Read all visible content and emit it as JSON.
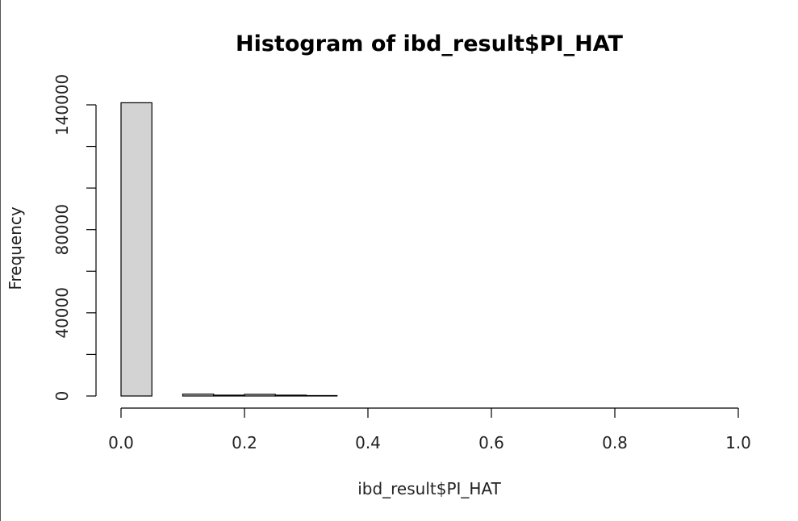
{
  "chart_data": {
    "type": "bar",
    "title": "Histogram of ibd_result$PI_HAT",
    "xlabel": "ibd_result$PI_HAT",
    "ylabel": "Frequency",
    "xlim": [
      0,
      1
    ],
    "ylim": [
      0,
      140000
    ],
    "xticks": [
      "0.0",
      "0.2",
      "0.4",
      "0.6",
      "0.8",
      "1.0"
    ],
    "yticks": [
      "0",
      "40000",
      "80000",
      "140000"
    ],
    "ytick_marks": [
      0,
      20000,
      40000,
      60000,
      80000,
      100000,
      120000,
      140000
    ],
    "bin_width": 0.05,
    "bins": [
      0.0,
      0.05,
      0.1,
      0.15,
      0.2,
      0.25,
      0.3,
      0.35,
      0.4,
      0.45,
      0.5,
      0.55,
      0.6,
      0.65,
      0.7,
      0.75,
      0.8,
      0.85,
      0.9,
      0.95
    ],
    "values": [
      141000,
      0,
      900,
      400,
      800,
      400,
      200,
      0,
      0,
      0,
      0,
      0,
      0,
      0,
      0,
      0,
      0,
      0,
      0,
      0
    ],
    "bar_color": "#d3d3d3",
    "grid": false
  }
}
